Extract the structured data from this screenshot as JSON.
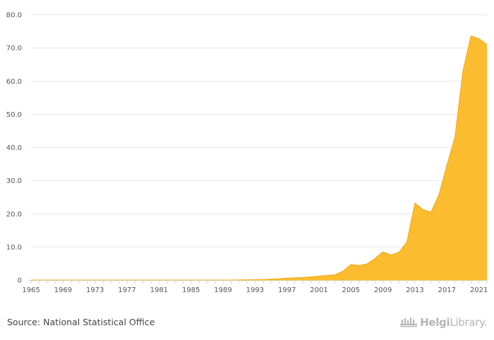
{
  "chart_data": {
    "type": "area",
    "title": "",
    "xlabel": "",
    "ylabel": "",
    "x": [
      1965,
      1966,
      1967,
      1968,
      1969,
      1970,
      1971,
      1972,
      1973,
      1974,
      1975,
      1976,
      1977,
      1978,
      1979,
      1980,
      1981,
      1982,
      1983,
      1984,
      1985,
      1986,
      1987,
      1988,
      1989,
      1990,
      1991,
      1992,
      1993,
      1994,
      1995,
      1996,
      1997,
      1998,
      1999,
      2000,
      2001,
      2002,
      2003,
      2004,
      2005,
      2006,
      2007,
      2008,
      2009,
      2010,
      2011,
      2012,
      2013,
      2014,
      2015,
      2016,
      2017,
      2018,
      2019,
      2020,
      2021,
      2022
    ],
    "series": [
      {
        "values": [
          0.0,
          0.0,
          0.0,
          0.0,
          0.0,
          0.0,
          0.0,
          0.0,
          0.0,
          0.0,
          0.0,
          0.0,
          0.0,
          0.0,
          0.0,
          0.0,
          0.0,
          0.0,
          0.0,
          0.0,
          0.0,
          0.0,
          0.0,
          0.0,
          0.0,
          0.0,
          0.05,
          0.1,
          0.15,
          0.2,
          0.3,
          0.4,
          0.6,
          0.7,
          0.8,
          1.0,
          1.2,
          1.4,
          1.6,
          2.7,
          4.7,
          4.4,
          4.9,
          6.5,
          8.5,
          7.6,
          8.4,
          11.5,
          23.2,
          21.3,
          20.5,
          25.7,
          34.7,
          43.0,
          63.0,
          73.6,
          72.8,
          71.0
        ]
      }
    ],
    "ylim": [
      0,
      80
    ],
    "yticks": [
      "0",
      "10.0",
      "20.0",
      "30.0",
      "40.0",
      "50.0",
      "60.0",
      "70.0",
      "80.0"
    ],
    "xticks": [
      "1965",
      "1969",
      "1973",
      "1977",
      "1981",
      "1985",
      "1989",
      "1993",
      "1997",
      "2001",
      "2005",
      "2009",
      "2013",
      "2017",
      "2021"
    ],
    "grid": true,
    "legend": "none",
    "colors": {
      "fill": "#fbbd2f",
      "line": "#f5ab1c",
      "grid": "#e6e6e6",
      "axis": "#d9d5b0"
    }
  },
  "footer": {
    "source": "Source: National Statistical Office",
    "logo_bold": "Helgi",
    "logo_light": "Library."
  },
  "icons": {
    "logo": "helgi-library-logo-icon"
  }
}
